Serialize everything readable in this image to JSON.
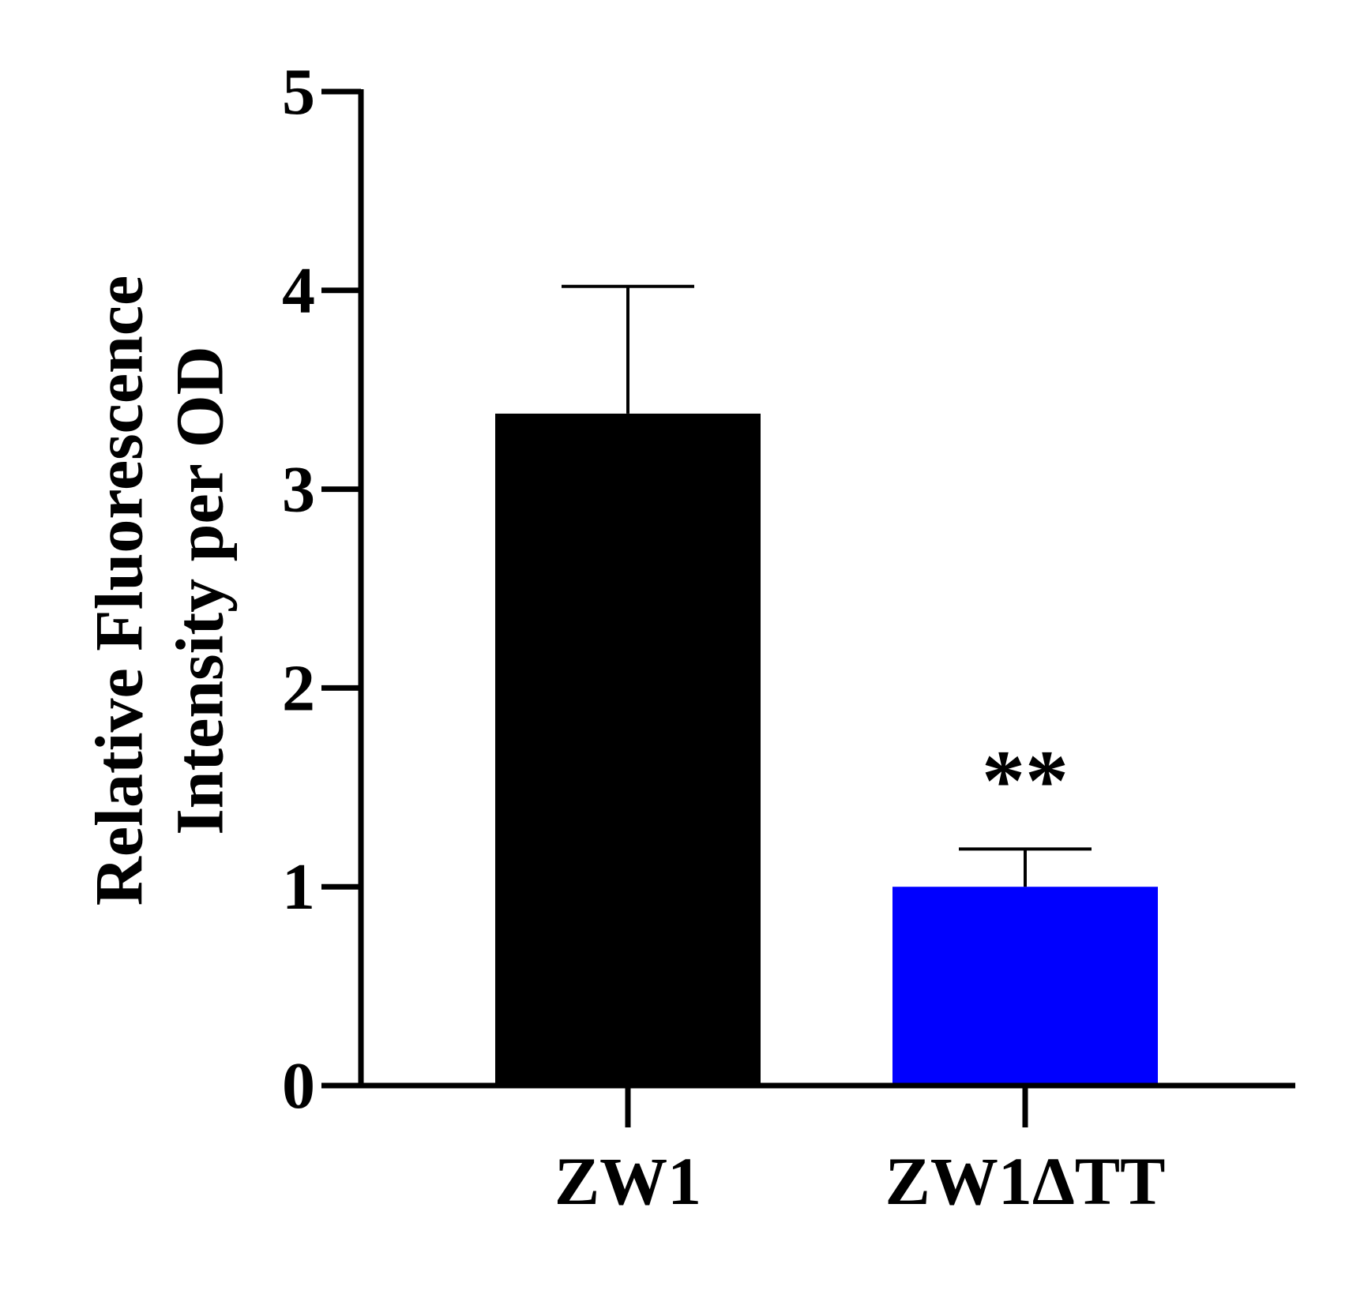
{
  "chart_data": {
    "type": "bar",
    "y_label": [
      "Relative Fluorescence",
      "Intensity per OD"
    ],
    "categories": [
      "ZW1",
      "ZW1ΔTT"
    ],
    "values": [
      3.38,
      1.0
    ],
    "errors": [
      0.64,
      0.19
    ],
    "colors": [
      "#000000",
      "#0000ff"
    ],
    "annotations": [
      {
        "text": "**",
        "x": "ZW1ΔTT"
      }
    ],
    "ylim": [
      0,
      5
    ],
    "yticks": [
      0,
      1,
      2,
      3,
      4,
      5
    ],
    "grid": false
  }
}
